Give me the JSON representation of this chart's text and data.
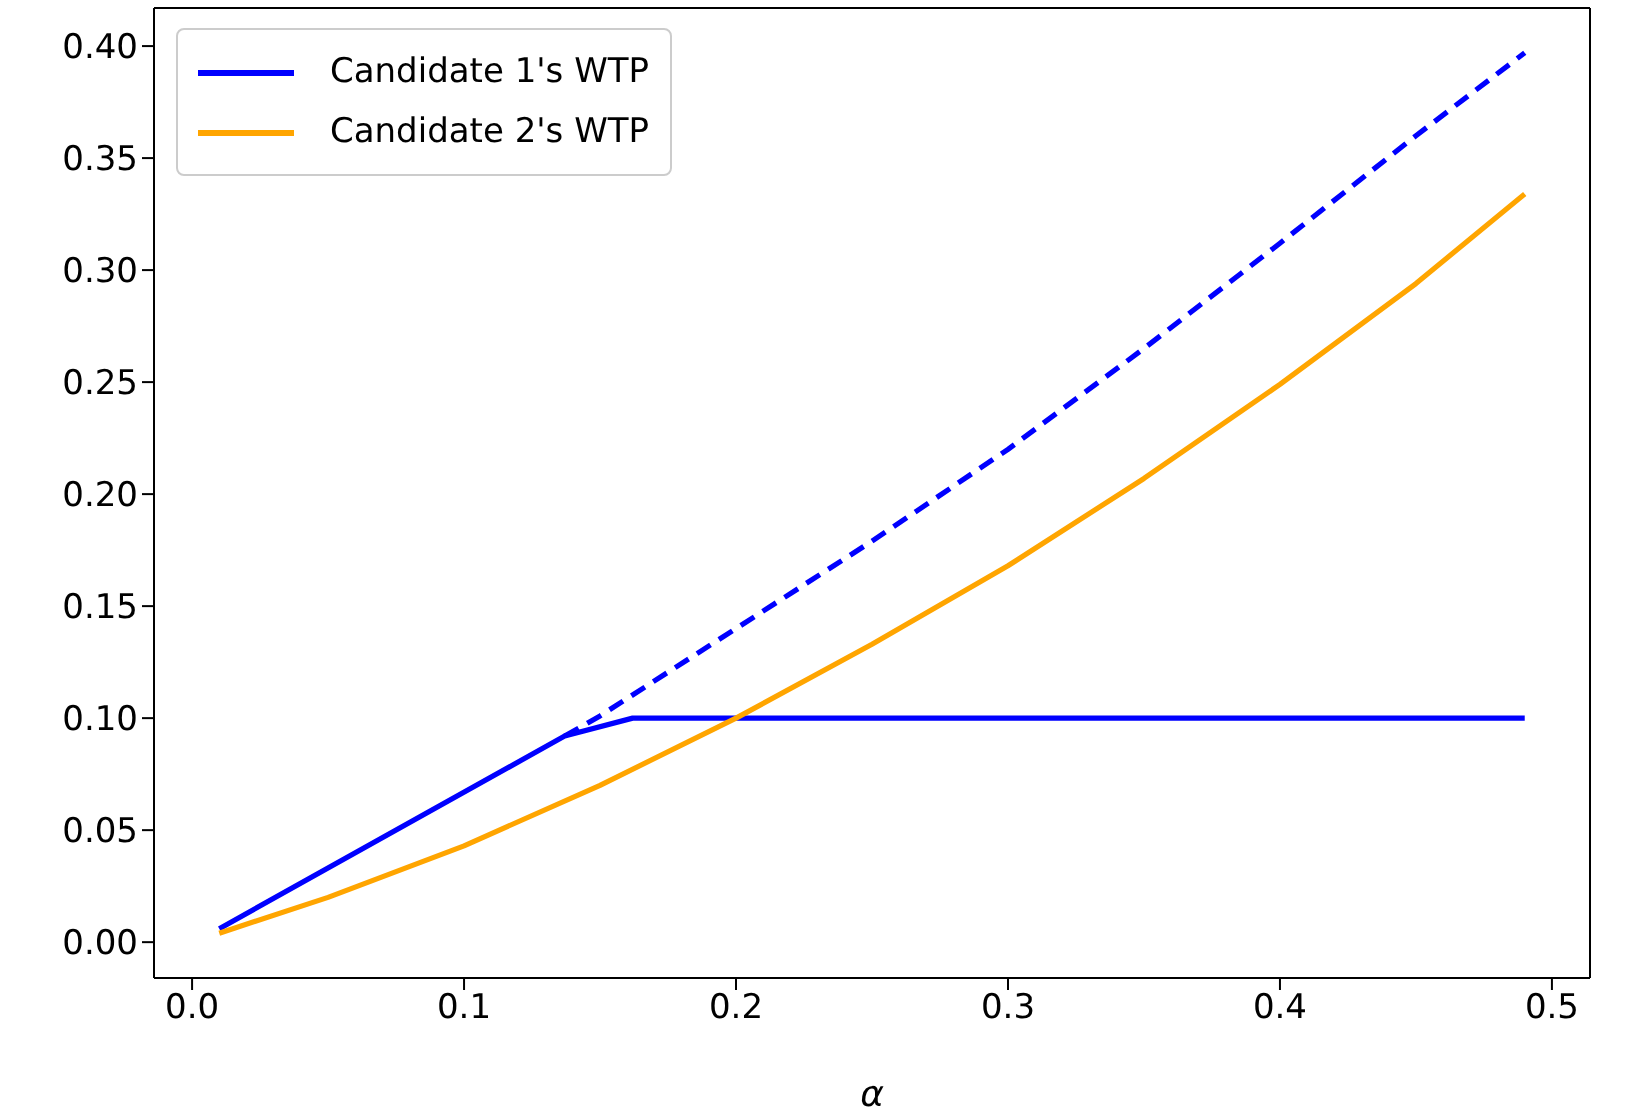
{
  "chart_data": {
    "type": "line",
    "xlabel": "α",
    "legend": "top left",
    "grid": false,
    "marker": "none",
    "xlim": [
      -0.014,
      0.514
    ],
    "ylim": [
      -0.016,
      0.417
    ],
    "xticks": [
      {
        "value": 0,
        "label": "0.0"
      },
      {
        "value": 0.1,
        "label": "0.1"
      },
      {
        "value": 0.2,
        "label": "0.2"
      },
      {
        "value": 0.3,
        "label": "0.3"
      },
      {
        "value": 0.4,
        "label": "0.4"
      },
      {
        "value": 0.5,
        "label": "0.5"
      }
    ],
    "yticks": [
      {
        "value": 0,
        "label": "0.00"
      },
      {
        "value": 0.05,
        "label": "0.05"
      },
      {
        "value": 0.1,
        "label": "0.10"
      },
      {
        "value": 0.15,
        "label": "0.15"
      },
      {
        "value": 0.2,
        "label": "0.20"
      },
      {
        "value": 0.25,
        "label": "0.25"
      },
      {
        "value": 0.3,
        "label": "0.30"
      },
      {
        "value": 0.35,
        "label": "0.35"
      },
      {
        "value": 0.4,
        "label": "0.40"
      }
    ],
    "series": [
      {
        "name": "Candidate 1's WTP",
        "color": "#0000ff",
        "line_style": "solid",
        "x": [
          0.01,
          0.137,
          0.162,
          0.49
        ],
        "values": [
          0.006,
          0.092,
          0.1,
          0.1
        ]
      },
      {
        "name": "Candidate 2's WTP",
        "color": "#ffa500",
        "line_style": "solid",
        "x": [
          0.01,
          0.05,
          0.1,
          0.15,
          0.2,
          0.25,
          0.3,
          0.35,
          0.4,
          0.45,
          0.49
        ],
        "values": [
          0.004,
          0.02,
          0.043,
          0.07,
          0.1,
          0.133,
          0.168,
          0.207,
          0.249,
          0.294,
          0.334
        ]
      },
      {
        "color": "#0000ff",
        "line_style": "dashed",
        "x": [
          0.137,
          0.15,
          0.2,
          0.25,
          0.3,
          0.35,
          0.4,
          0.45,
          0.49
        ],
        "values": [
          0.092,
          0.101,
          0.14,
          0.179,
          0.22,
          0.265,
          0.312,
          0.36,
          0.397
        ]
      }
    ]
  }
}
